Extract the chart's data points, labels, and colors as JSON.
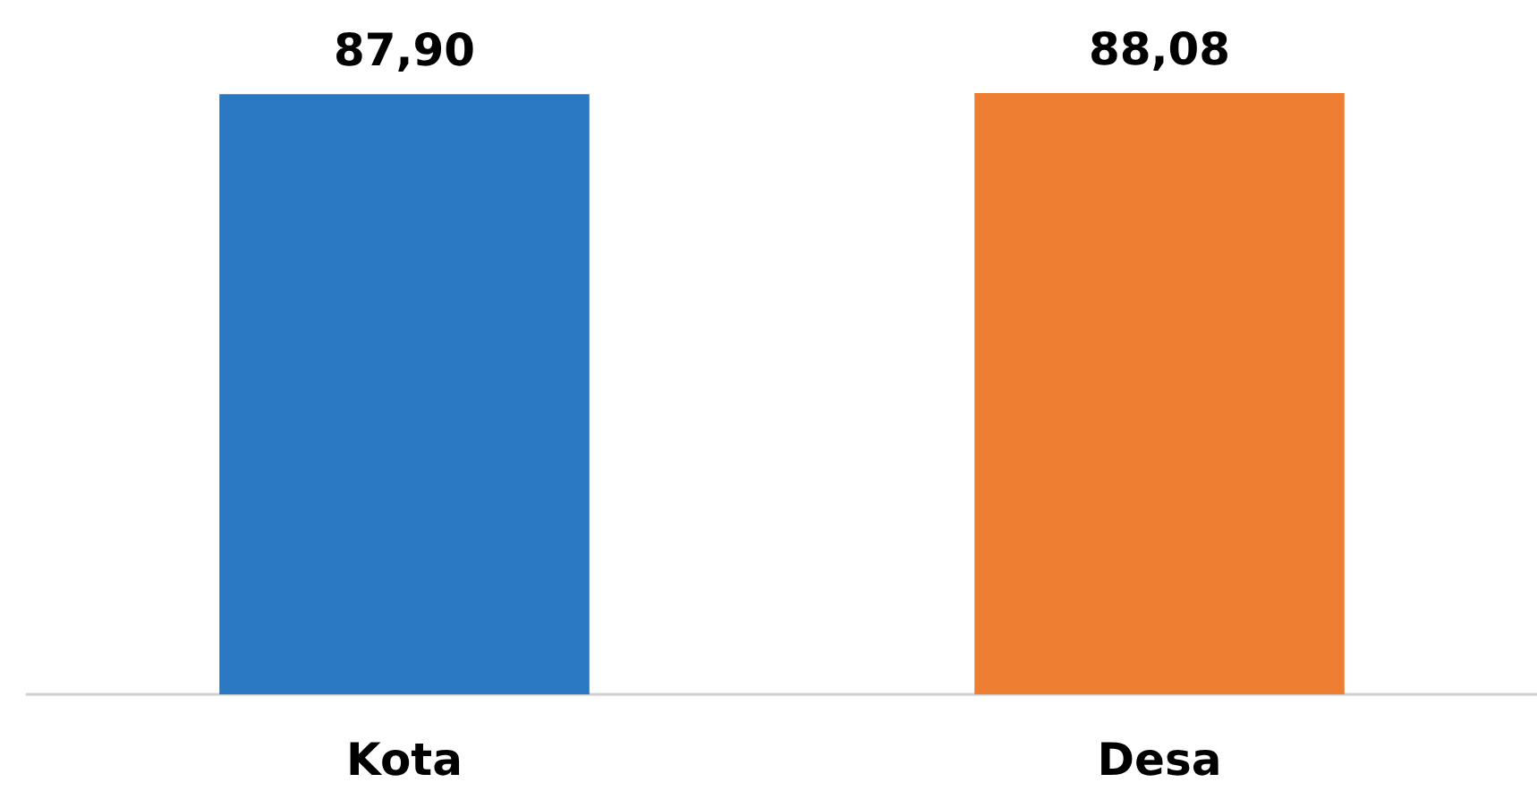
{
  "chart_data": {
    "type": "bar",
    "categories": [
      "Kota",
      "Desa"
    ],
    "values": [
      87.9,
      88.08
    ],
    "colors": [
      "#2a78c2",
      "#ed7d31"
    ],
    "value_labels": [
      "87,90",
      "88,08"
    ]
  }
}
